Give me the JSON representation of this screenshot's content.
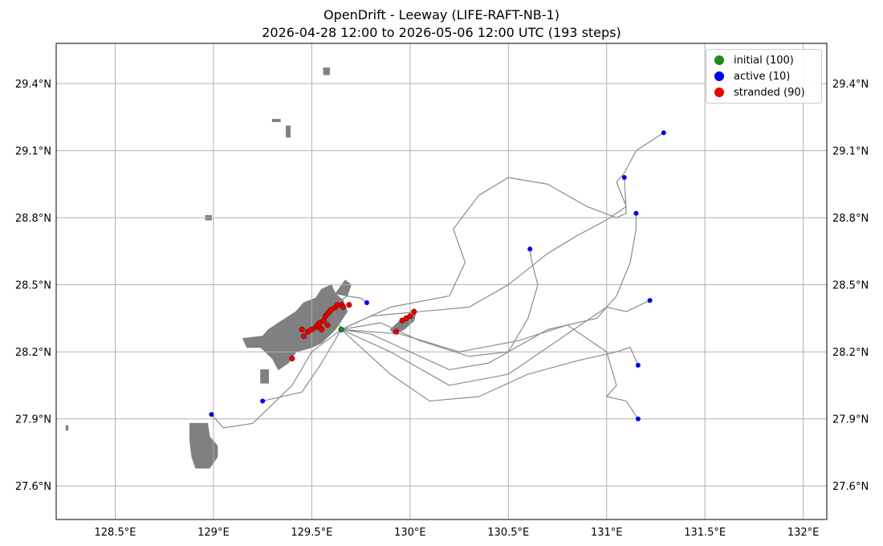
{
  "title": {
    "line1": "OpenDrift - Leeway (LIFE-RAFT-NB-1)",
    "line2": "2026-04-28 12:00 to 2026-05-06 12:00 UTC (193 steps)"
  },
  "map": {
    "lon_range": [
      128.2,
      132.12
    ],
    "lat_range": [
      27.45,
      29.58
    ],
    "lon_ticks": [
      128.5,
      129.0,
      129.5,
      130.0,
      130.5,
      131.0,
      131.5,
      132.0
    ],
    "lon_tick_labels": [
      "128.5°E",
      "129°E",
      "129.5°E",
      "130°E",
      "130.5°E",
      "131°E",
      "131.5°E",
      "132°E"
    ],
    "lat_ticks": [
      27.6,
      27.9,
      28.2,
      28.5,
      28.8,
      29.1,
      29.4
    ],
    "lat_tick_labels": [
      "27.6°N",
      "27.9°N",
      "28.2°N",
      "28.5°N",
      "28.8°N",
      "29.1°N",
      "29.4°N"
    ],
    "grid": true,
    "land_color": "#808080",
    "track_color": "#8c8c8c"
  },
  "legend": {
    "position": "top-right",
    "items": [
      {
        "label": "initial (100)",
        "color": "#1a8a1a"
      },
      {
        "label": "active (10)",
        "color": "#0000ee"
      },
      {
        "label": "stranded (90)",
        "color": "#ee0000"
      }
    ]
  },
  "chart_data": {
    "type": "scatter",
    "initial_point": [
      129.65,
      28.3
    ],
    "active_points": [
      [
        131.29,
        29.18
      ],
      [
        131.09,
        28.98
      ],
      [
        131.15,
        28.82
      ],
      [
        130.61,
        28.66
      ],
      [
        131.22,
        28.43
      ],
      [
        129.78,
        28.42
      ],
      [
        131.16,
        28.14
      ],
      [
        128.99,
        27.92
      ],
      [
        129.25,
        27.98
      ],
      [
        131.16,
        27.9
      ]
    ],
    "stranded_points": [
      [
        129.45,
        28.3
      ],
      [
        129.46,
        28.27
      ],
      [
        129.48,
        28.29
      ],
      [
        129.5,
        28.3
      ],
      [
        129.52,
        28.31
      ],
      [
        129.53,
        28.32
      ],
      [
        129.54,
        28.33
      ],
      [
        129.56,
        28.34
      ],
      [
        129.57,
        28.36
      ],
      [
        129.58,
        28.37
      ],
      [
        129.59,
        28.38
      ],
      [
        129.6,
        28.39
      ],
      [
        129.62,
        28.4
      ],
      [
        129.63,
        28.41
      ],
      [
        129.65,
        28.41
      ],
      [
        129.66,
        28.4
      ],
      [
        129.69,
        28.41
      ],
      [
        129.54,
        28.31
      ],
      [
        129.55,
        28.3
      ],
      [
        129.58,
        28.32
      ],
      [
        129.4,
        28.17
      ],
      [
        129.93,
        28.29
      ],
      [
        129.96,
        28.34
      ],
      [
        129.98,
        28.35
      ],
      [
        130.0,
        28.36
      ],
      [
        130.02,
        28.38
      ]
    ],
    "trajectories": [
      [
        [
          129.65,
          28.3
        ],
        [
          129.8,
          28.36
        ],
        [
          130.05,
          28.38
        ],
        [
          130.3,
          28.4
        ],
        [
          130.5,
          28.5
        ],
        [
          130.7,
          28.64
        ],
        [
          130.85,
          28.72
        ],
        [
          131.0,
          28.79
        ],
        [
          131.1,
          28.85
        ],
        [
          131.05,
          28.96
        ],
        [
          131.09,
          29.0
        ],
        [
          131.15,
          29.1
        ],
        [
          131.29,
          29.18
        ]
      ],
      [
        [
          129.65,
          28.3
        ],
        [
          129.9,
          28.4
        ],
        [
          130.2,
          28.45
        ],
        [
          130.28,
          28.6
        ],
        [
          130.22,
          28.75
        ],
        [
          130.35,
          28.9
        ],
        [
          130.5,
          28.98
        ],
        [
          130.7,
          28.95
        ],
        [
          130.9,
          28.85
        ],
        [
          131.05,
          28.8
        ],
        [
          131.1,
          28.82
        ],
        [
          131.09,
          28.98
        ]
      ],
      [
        [
          129.65,
          28.3
        ],
        [
          129.85,
          28.33
        ],
        [
          130.05,
          28.25
        ],
        [
          130.3,
          28.18
        ],
        [
          130.5,
          28.2
        ],
        [
          130.6,
          28.35
        ],
        [
          130.65,
          28.5
        ],
        [
          130.62,
          28.6
        ],
        [
          130.61,
          28.66
        ]
      ],
      [
        [
          129.65,
          28.3
        ],
        [
          129.8,
          28.28
        ],
        [
          130.0,
          28.2
        ],
        [
          130.2,
          28.12
        ],
        [
          130.4,
          28.15
        ],
        [
          130.7,
          28.3
        ],
        [
          130.95,
          28.35
        ],
        [
          131.05,
          28.45
        ],
        [
          131.12,
          28.6
        ],
        [
          131.15,
          28.75
        ],
        [
          131.15,
          28.82
        ]
      ],
      [
        [
          129.65,
          28.3
        ],
        [
          129.9,
          28.2
        ],
        [
          130.2,
          28.05
        ],
        [
          130.5,
          28.1
        ],
        [
          130.75,
          28.25
        ],
        [
          131.0,
          28.4
        ],
        [
          131.1,
          28.38
        ],
        [
          131.22,
          28.43
        ]
      ],
      [
        [
          129.65,
          28.3
        ],
        [
          129.6,
          28.4
        ],
        [
          129.68,
          28.45
        ],
        [
          129.75,
          28.44
        ],
        [
          129.78,
          28.42
        ]
      ],
      [
        [
          129.65,
          28.3
        ],
        [
          129.9,
          28.1
        ],
        [
          130.1,
          27.98
        ],
        [
          130.35,
          28.0
        ],
        [
          130.6,
          28.1
        ],
        [
          130.85,
          28.16
        ],
        [
          131.05,
          28.2
        ],
        [
          131.12,
          28.22
        ],
        [
          131.16,
          28.14
        ]
      ],
      [
        [
          129.65,
          28.3
        ],
        [
          129.5,
          28.2
        ],
        [
          129.4,
          28.05
        ],
        [
          129.2,
          27.88
        ],
        [
          129.05,
          27.86
        ],
        [
          128.99,
          27.92
        ]
      ],
      [
        [
          129.65,
          28.3
        ],
        [
          129.55,
          28.15
        ],
        [
          129.45,
          28.02
        ],
        [
          129.3,
          27.99
        ],
        [
          129.25,
          27.98
        ]
      ],
      [
        [
          129.65,
          28.3
        ],
        [
          129.95,
          28.28
        ],
        [
          130.25,
          28.2
        ],
        [
          130.55,
          28.25
        ],
        [
          130.8,
          28.32
        ],
        [
          131.0,
          28.2
        ],
        [
          131.05,
          28.05
        ],
        [
          131.0,
          28.0
        ],
        [
          131.1,
          27.98
        ],
        [
          131.16,
          27.9
        ]
      ]
    ],
    "land_polygons": [
      [
        [
          129.15,
          28.26
        ],
        [
          129.25,
          28.27
        ],
        [
          129.28,
          28.3
        ],
        [
          129.35,
          28.34
        ],
        [
          129.42,
          28.38
        ],
        [
          129.46,
          28.42
        ],
        [
          129.52,
          28.44
        ],
        [
          129.55,
          28.48
        ],
        [
          129.6,
          28.5
        ],
        [
          129.62,
          28.46
        ],
        [
          129.66,
          28.43
        ],
        [
          129.68,
          28.38
        ],
        [
          129.65,
          28.34
        ],
        [
          129.62,
          28.3
        ],
        [
          129.55,
          28.24
        ],
        [
          129.5,
          28.22
        ],
        [
          129.42,
          28.2
        ],
        [
          129.38,
          28.15
        ],
        [
          129.33,
          28.12
        ],
        [
          129.3,
          28.17
        ],
        [
          129.24,
          28.22
        ],
        [
          129.17,
          28.22
        ]
      ],
      [
        [
          129.24,
          28.12
        ],
        [
          129.28,
          28.12
        ],
        [
          129.28,
          28.06
        ],
        [
          129.24,
          28.06
        ]
      ],
      [
        [
          129.62,
          28.46
        ],
        [
          129.67,
          28.52
        ],
        [
          129.7,
          28.5
        ],
        [
          129.68,
          28.45
        ]
      ],
      [
        [
          129.9,
          28.3
        ],
        [
          129.95,
          28.34
        ],
        [
          130.0,
          28.36
        ],
        [
          130.03,
          28.38
        ],
        [
          130.02,
          28.34
        ],
        [
          129.97,
          28.3
        ],
        [
          129.92,
          28.28
        ]
      ],
      [
        [
          128.88,
          27.88
        ],
        [
          128.97,
          27.88
        ],
        [
          128.98,
          27.82
        ],
        [
          129.02,
          27.78
        ],
        [
          129.02,
          27.73
        ],
        [
          128.98,
          27.68
        ],
        [
          128.91,
          27.68
        ],
        [
          128.89,
          27.73
        ],
        [
          128.88,
          27.8
        ]
      ],
      [
        [
          129.56,
          29.47
        ],
        [
          129.59,
          29.47
        ],
        [
          129.59,
          29.44
        ],
        [
          129.56,
          29.44
        ]
      ],
      [
        [
          129.37,
          29.21
        ],
        [
          129.39,
          29.21
        ],
        [
          129.39,
          29.16
        ],
        [
          129.37,
          29.16
        ]
      ],
      [
        [
          128.96,
          28.81
        ],
        [
          128.99,
          28.81
        ],
        [
          128.99,
          28.79
        ],
        [
          128.96,
          28.79
        ]
      ],
      [
        [
          129.3,
          29.24
        ],
        [
          129.34,
          29.24
        ],
        [
          129.34,
          29.23
        ],
        [
          129.3,
          29.23
        ]
      ],
      [
        [
          128.25,
          27.87
        ],
        [
          128.26,
          27.87
        ],
        [
          128.26,
          27.85
        ],
        [
          128.25,
          27.85
        ]
      ]
    ]
  }
}
